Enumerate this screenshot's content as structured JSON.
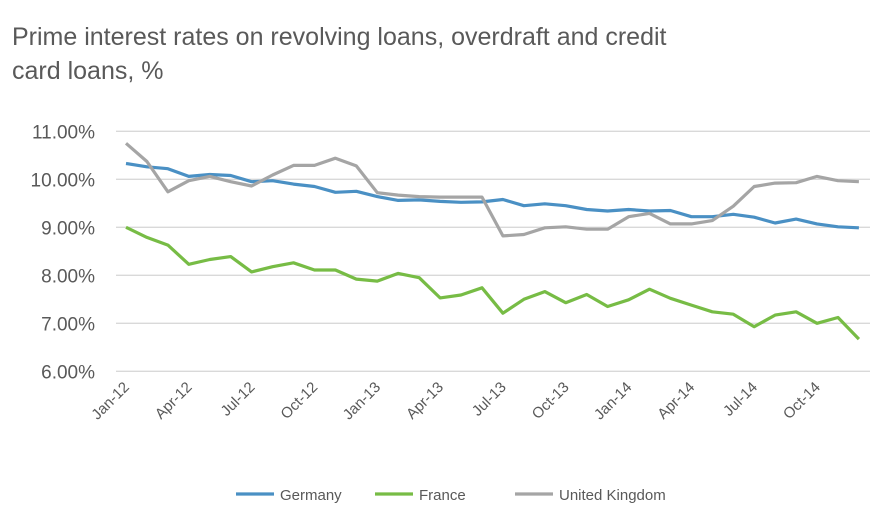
{
  "chart_data": {
    "type": "line",
    "title": "Prime interest rates on revolving loans, overdraft and credit card loans, %",
    "xlabel": "",
    "ylabel": "",
    "ylim": [
      6,
      11
    ],
    "y_ticks": [
      "6.00%",
      "7.00%",
      "8.00%",
      "9.00%",
      "10.00%",
      "11.00%"
    ],
    "grid": true,
    "legend": "bottom",
    "x_tick_labels": [
      "Jan-12",
      "Apr-12",
      "Jul-12",
      "Oct-12",
      "Jan-13",
      "Apr-13",
      "Jul-13",
      "Oct-13",
      "Jan-14",
      "Apr-14",
      "Jul-14",
      "Oct-14"
    ],
    "x": [
      "Jan-12",
      "Feb-12",
      "Mar-12",
      "Apr-12",
      "May-12",
      "Jun-12",
      "Jul-12",
      "Aug-12",
      "Sep-12",
      "Oct-12",
      "Nov-12",
      "Dec-12",
      "Jan-13",
      "Feb-13",
      "Mar-13",
      "Apr-13",
      "May-13",
      "Jun-13",
      "Jul-13",
      "Aug-13",
      "Sep-13",
      "Oct-13",
      "Nov-13",
      "Dec-13",
      "Jan-14",
      "Feb-14",
      "Mar-14",
      "Apr-14",
      "May-14",
      "Jun-14",
      "Jul-14",
      "Aug-14",
      "Sep-14",
      "Oct-14",
      "Nov-14",
      "Dec-14"
    ],
    "series": [
      {
        "name": "Germany",
        "color": "#4a90c4",
        "values": [
          10.33,
          10.26,
          10.22,
          10.06,
          10.1,
          10.08,
          9.95,
          9.97,
          9.9,
          9.85,
          9.73,
          9.75,
          9.64,
          9.56,
          9.57,
          9.54,
          9.52,
          9.53,
          9.58,
          9.45,
          9.49,
          9.45,
          9.37,
          9.34,
          9.37,
          9.34,
          9.35,
          9.22,
          9.22,
          9.27,
          9.21,
          9.09,
          9.17,
          9.07,
          9.01,
          8.99
        ]
      },
      {
        "name": "France",
        "color": "#77bc45",
        "values": [
          9.0,
          8.79,
          8.63,
          8.23,
          8.33,
          8.39,
          8.07,
          8.18,
          8.26,
          8.11,
          8.11,
          7.92,
          7.88,
          8.04,
          7.95,
          7.53,
          7.59,
          7.74,
          7.21,
          7.5,
          7.66,
          7.43,
          7.6,
          7.35,
          7.49,
          7.71,
          7.52,
          7.38,
          7.24,
          7.19,
          6.93,
          7.17,
          7.24,
          7.0,
          7.12,
          6.67
        ]
      },
      {
        "name": "United Kingdom",
        "color": "#a5a5a5",
        "values": [
          10.75,
          10.37,
          9.74,
          9.97,
          10.06,
          9.95,
          9.86,
          10.09,
          10.29,
          10.29,
          10.44,
          10.28,
          9.72,
          9.67,
          9.64,
          9.63,
          9.63,
          9.63,
          8.82,
          8.85,
          8.99,
          9.01,
          8.96,
          8.96,
          9.22,
          9.29,
          9.07,
          9.07,
          9.14,
          9.44,
          9.85,
          9.92,
          9.93,
          10.06,
          9.97,
          9.95
        ]
      }
    ]
  }
}
